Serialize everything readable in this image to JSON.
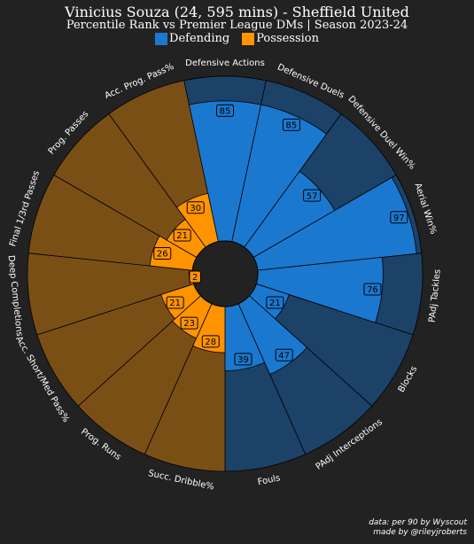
{
  "title": "Vinicius Souza (24, 595 mins) - Sheffield United",
  "subtitle": "Percentile Rank vs Premier League DMs | Season 2023-24",
  "legend": [
    {
      "label": "Defending",
      "color": "#1a78cf"
    },
    {
      "label": "Possession",
      "color": "#ff9300"
    }
  ],
  "credits": {
    "line1": "data: per 90 by Wyscout",
    "line2": "made by @rileyjroberts"
  },
  "chart_data": {
    "type": "polar-bar",
    "max_value": 100,
    "colors": {
      "background": "#222222",
      "defending": "#1a78cf",
      "defending_dark": "#1c4268",
      "possession": "#ff9300",
      "possession_dark": "#7a4f16",
      "center": "#222222"
    },
    "categories": [
      {
        "name": "Defensive Actions",
        "value": 85,
        "group": "Defending"
      },
      {
        "name": "Defensive Duels",
        "value": 85,
        "group": "Defending"
      },
      {
        "name": "Defensive Duel Win%",
        "value": 57,
        "group": "Defending"
      },
      {
        "name": "Aerial Win%",
        "value": 97,
        "group": "Defending"
      },
      {
        "name": "PAdj Tackles",
        "value": 76,
        "group": "Defending"
      },
      {
        "name": "Blocks",
        "value": 21,
        "group": "Defending"
      },
      {
        "name": "PAdj Interceptions",
        "value": 47,
        "group": "Defending"
      },
      {
        "name": "Fouls",
        "value": 39,
        "group": "Defending"
      },
      {
        "name": "Succ. Dribble%",
        "value": 28,
        "group": "Possession"
      },
      {
        "name": "Prog. Runs",
        "value": 23,
        "group": "Possession"
      },
      {
        "name": "Acc. Short/Med Pass%",
        "value": 21,
        "group": "Possession"
      },
      {
        "name": "Deep Completions",
        "value": 2,
        "group": "Possession"
      },
      {
        "name": "Final 1/3rd Passes",
        "value": 26,
        "group": "Possession"
      },
      {
        "name": "Prog. Passes",
        "value": 21,
        "group": "Possession"
      },
      {
        "name": "Acc. Prog. Pass%",
        "value": 30,
        "group": "Possession"
      }
    ]
  }
}
